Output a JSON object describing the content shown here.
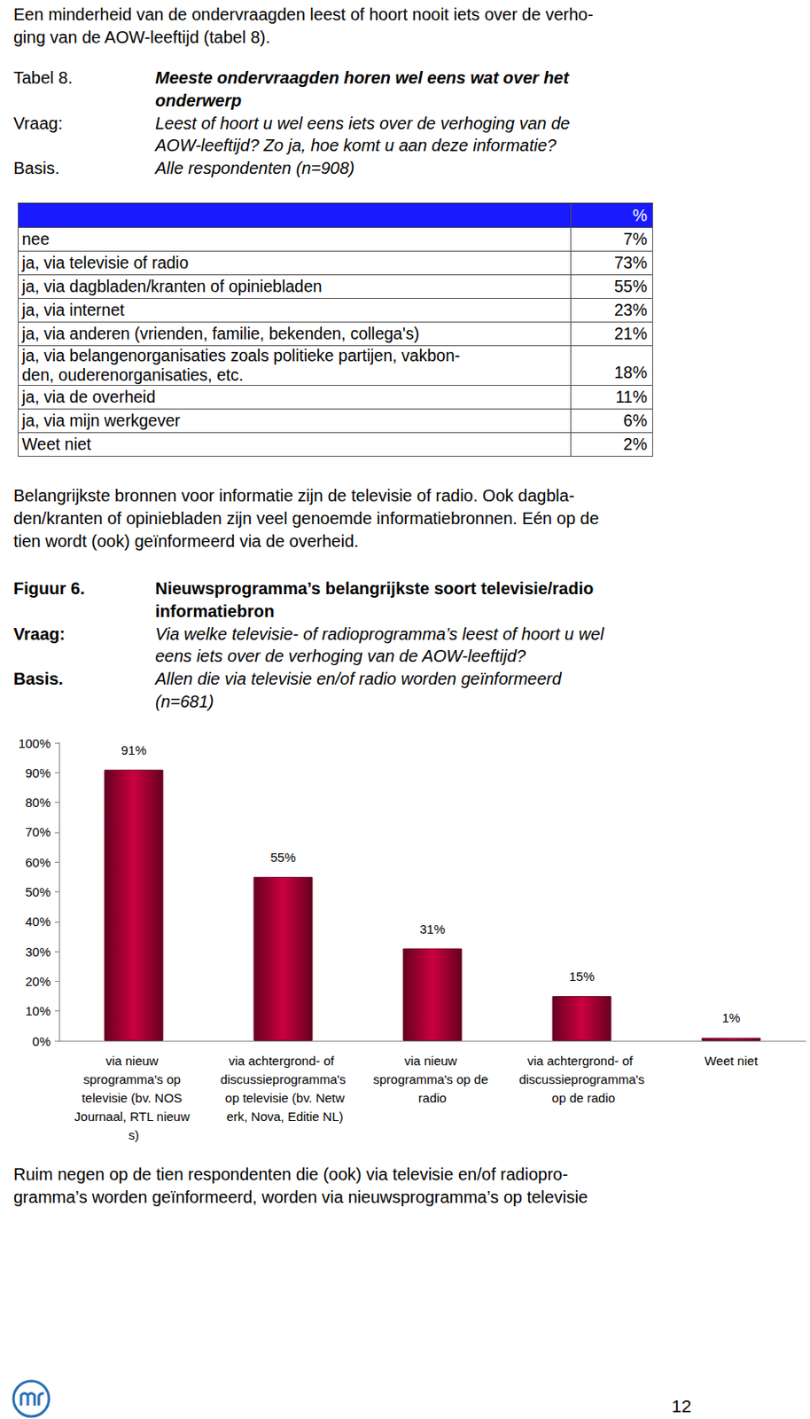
{
  "document": {
    "intro": [
      "Een minderheid van de ondervraagden leest of hoort nooit iets over de verho-",
      "ging van de AOW-leeftijd (tabel 8)."
    ],
    "table_caption": {
      "label": "Tabel 8.",
      "title": [
        "Meeste ondervraagden horen wel eens wat over het",
        "onderwerp"
      ],
      "question_label": "Vraag:",
      "question": [
        "Leest of hoort u wel eens iets over de verhoging van de",
        "AOW-leeftijd? Zo ja, hoe komt u aan deze informatie?"
      ],
      "basis_label": "Basis.",
      "basis": [
        "Alle respondenten (n=908)"
      ]
    },
    "table": {
      "header": [
        "",
        "%"
      ],
      "rows": [
        [
          [
            "nee"
          ],
          "7%"
        ],
        [
          [
            "ja, via televisie of radio"
          ],
          "73%"
        ],
        [
          [
            "ja, via dagbladen/kranten of opiniebladen"
          ],
          "55%"
        ],
        [
          [
            "ja, via internet"
          ],
          "23%"
        ],
        [
          [
            "ja, via anderen (vrienden, familie, bekenden, collega's)"
          ],
          "21%"
        ],
        [
          [
            "ja, via belangenorganisaties zoals politieke partijen, vakbon-",
            "den, ouderenorganisaties, etc."
          ],
          "18%"
        ],
        [
          [
            "ja, via de overheid"
          ],
          "11%"
        ],
        [
          [
            "ja, via mijn werkgever"
          ],
          "6%"
        ],
        [
          [
            "Weet niet"
          ],
          "2%"
        ]
      ]
    },
    "paragraph_1": [
      "Belangrijkste bronnen voor informatie zijn de televisie of radio. Ook dagbla-",
      "den/kranten of opiniebladen zijn veel genoemde informatiebronnen. Eén op de",
      "tien wordt (ook) geïnformeerd via de overheid."
    ],
    "figure_caption": {
      "label": "Figuur 6.",
      "title": [
        "Nieuwsprogramma’s belangrijkste soort televisie/radio",
        "informatiebron"
      ],
      "question_label": "Vraag:",
      "question": [
        "Via welke televisie- of radioprogramma’s leest of hoort u wel",
        "eens iets over de verhoging van de AOW-leeftijd?"
      ],
      "basis_label": "Basis.",
      "basis": [
        "Allen die via televisie en/of radio worden geïnformeerd",
        "(n=681)"
      ]
    },
    "paragraph_2": [
      "Ruim negen op de tien respondenten die (ook) via televisie en/of radiopro-",
      "gramma’s worden geïnformeerd, worden via nieuwsprogramma’s op televisie"
    ],
    "page_number": "12"
  },
  "chart_data": {
    "type": "bar",
    "categories": [
      "via nieuw sprogramma's op televisie (bv. NOS Journaal, RTL nieuw s)",
      "via achtergrond- of discussieprogramma's op televisie (bv. Netw erk, Nova, Editie NL)",
      "via nieuw sprogramma's op de radio",
      "via achtergrond- of discussieprogramma's op de radio",
      "Weet niet"
    ],
    "values": [
      91,
      55,
      31,
      15,
      1
    ],
    "value_labels": [
      "91%",
      "55%",
      "31%",
      "15%",
      "1%"
    ],
    "data_labels": true,
    "color": "#cc0040",
    "ylim": [
      0,
      100
    ],
    "yticks": [
      {
        "value": 0,
        "label": "0%"
      },
      {
        "value": 10,
        "label": "10%"
      },
      {
        "value": 20,
        "label": "20%"
      },
      {
        "value": 30,
        "label": "30%"
      },
      {
        "value": 40,
        "label": "40%"
      },
      {
        "value": 50,
        "label": "50%"
      },
      {
        "value": 60,
        "label": "60%"
      },
      {
        "value": 70,
        "label": "70%"
      },
      {
        "value": 80,
        "label": "80%"
      },
      {
        "value": 90,
        "label": "90%"
      },
      {
        "value": 100,
        "label": "100%"
      }
    ],
    "grid": false
  }
}
